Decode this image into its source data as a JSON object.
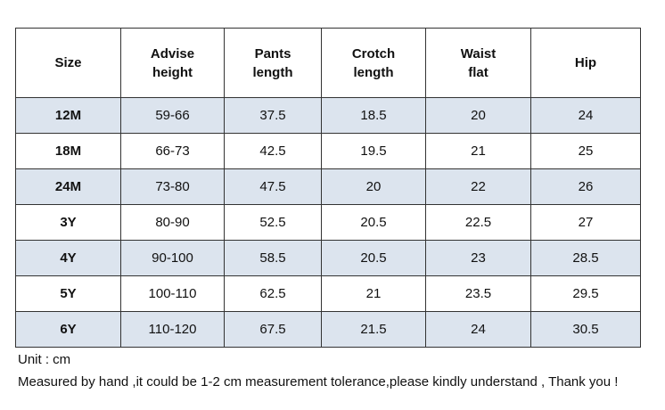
{
  "table": {
    "header": [
      [
        "Size"
      ],
      [
        "Advise",
        "height"
      ],
      [
        "Pants",
        "length"
      ],
      [
        "Crotch",
        "length"
      ],
      [
        "Waist",
        "flat"
      ],
      [
        "Hip"
      ]
    ],
    "rows": [
      [
        "12M",
        "59-66",
        "37.5",
        "18.5",
        "20",
        "24"
      ],
      [
        "18M",
        "66-73",
        "42.5",
        "19.5",
        "21",
        "25"
      ],
      [
        "24M",
        "73-80",
        "47.5",
        "20",
        "22",
        "26"
      ],
      [
        "3Y",
        "80-90",
        "52.5",
        "20.5",
        "22.5",
        "27"
      ],
      [
        "4Y",
        "90-100",
        "58.5",
        "20.5",
        "23",
        "28.5"
      ],
      [
        "5Y",
        "100-110",
        "62.5",
        "21",
        "23.5",
        "29.5"
      ],
      [
        "6Y",
        "110-120",
        "67.5",
        "21.5",
        "24",
        "30.5"
      ]
    ]
  },
  "notes": [
    "Unit : cm",
    "Measured by hand ,it could be 1-2 cm measurement tolerance,please kindly understand , Thank you !"
  ]
}
